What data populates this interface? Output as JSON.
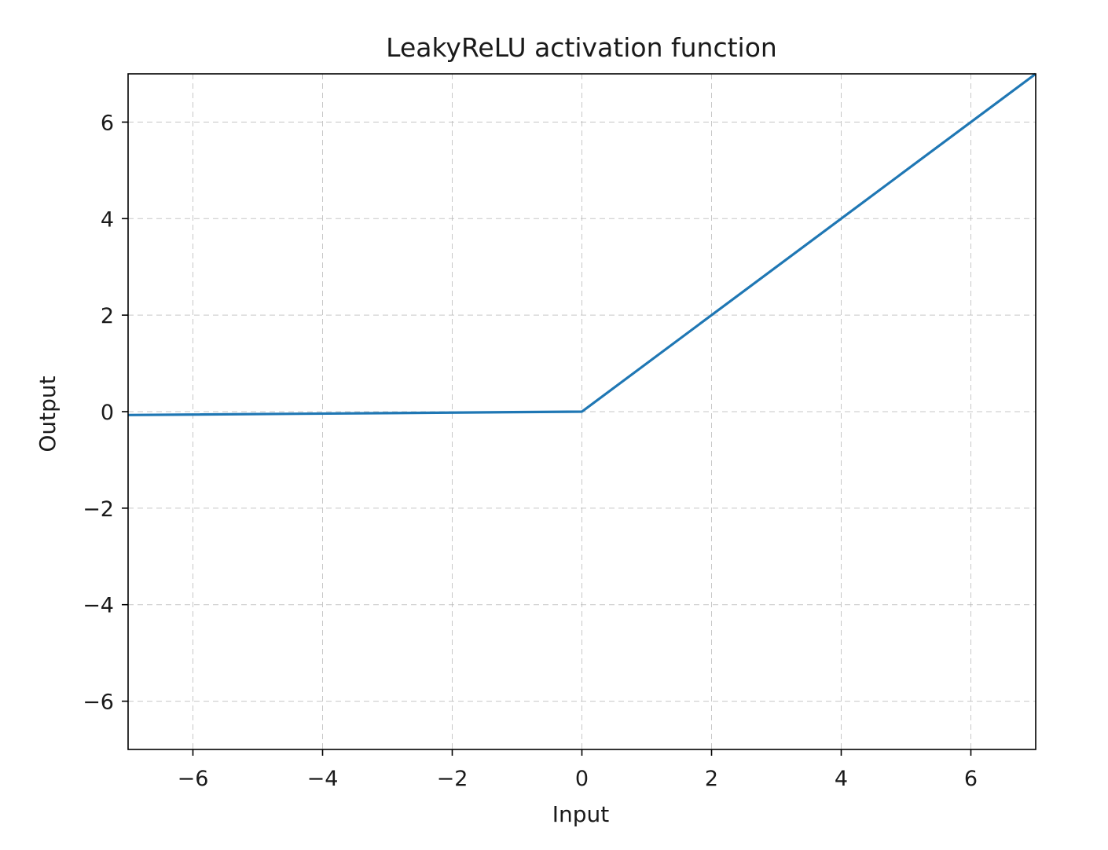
{
  "chart_data": {
    "type": "line",
    "title": "LeakyReLU activation function",
    "xlabel": "Input",
    "ylabel": "Output",
    "xlim": [
      -7,
      7
    ],
    "ylim": [
      -7,
      7
    ],
    "grid": true,
    "grid_style": "dashed",
    "x_ticks": [
      -6,
      -4,
      -2,
      0,
      2,
      4,
      6
    ],
    "y_ticks": [
      -6,
      -4,
      -2,
      0,
      2,
      4,
      6
    ],
    "x_tick_labels": [
      "−6",
      "−4",
      "−2",
      "0",
      "2",
      "4",
      "6"
    ],
    "y_tick_labels": [
      "−6",
      "−4",
      "−2",
      "0",
      "2",
      "4",
      "6"
    ],
    "series": [
      {
        "color": "#1f77b4",
        "x": [
          -7,
          0,
          7
        ],
        "y": [
          -0.07,
          0,
          7
        ]
      }
    ]
  }
}
